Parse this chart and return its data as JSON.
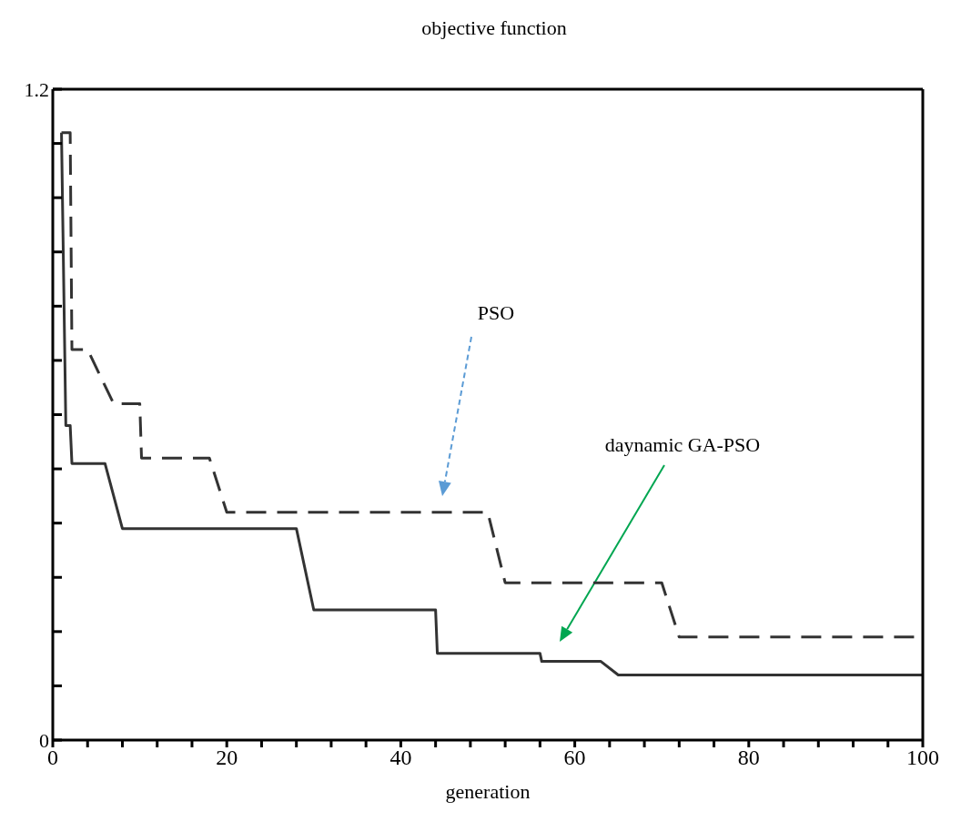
{
  "chart_data": {
    "type": "line",
    "title": "objective function",
    "xlabel": "generation",
    "xlim": [
      0,
      100
    ],
    "ylim": [
      0,
      1.2
    ],
    "xticks": [
      0,
      {
        "value": 4,
        "label": null
      },
      {
        "value": 8,
        "label": null
      },
      {
        "value": 12,
        "label": null
      },
      {
        "value": 16,
        "label": null
      },
      20,
      {
        "value": 24,
        "label": null
      },
      {
        "value": 28,
        "label": null
      },
      {
        "value": 32,
        "label": null
      },
      {
        "value": 36,
        "label": null
      },
      40,
      {
        "value": 44,
        "label": null
      },
      {
        "value": 48,
        "label": null
      },
      {
        "value": 52,
        "label": null
      },
      {
        "value": 56,
        "label": null
      },
      60,
      {
        "value": 64,
        "label": null
      },
      {
        "value": 68,
        "label": null
      },
      {
        "value": 72,
        "label": null
      },
      {
        "value": 76,
        "label": null
      },
      80,
      {
        "value": 84,
        "label": null
      },
      {
        "value": 88,
        "label": null
      },
      {
        "value": 92,
        "label": null
      },
      {
        "value": 96,
        "label": null
      },
      100
    ],
    "yticks": [
      0,
      {
        "value": 0.1,
        "label": null
      },
      {
        "value": 0.2,
        "label": null
      },
      {
        "value": 0.3,
        "label": null
      },
      {
        "value": 0.4,
        "label": null
      },
      {
        "value": 0.5,
        "label": null
      },
      {
        "value": 0.6,
        "label": null
      },
      {
        "value": 0.7,
        "label": null
      },
      {
        "value": 0.8,
        "label": null
      },
      {
        "value": 0.9,
        "label": null
      },
      {
        "value": 1.0,
        "label": null
      },
      {
        "value": 1.1,
        "label": null
      },
      1.2
    ],
    "marker": "none",
    "series": [
      {
        "color": "#333333",
        "line_style": "solid",
        "x": [
          1,
          1.5,
          2,
          2.2,
          4,
          6,
          8,
          28,
          30,
          44,
          44.2,
          56,
          56.2,
          63,
          65,
          100
        ],
        "values": [
          1.12,
          0.58,
          0.58,
          0.51,
          0.51,
          0.51,
          0.39,
          0.39,
          0.24,
          0.24,
          0.16,
          0.16,
          0.145,
          0.145,
          0.12,
          0.12
        ]
      },
      {
        "color": "#333333",
        "line_style": "dashed",
        "x": [
          1,
          2,
          2.2,
          4,
          7,
          10,
          10.2,
          18,
          20,
          50,
          52,
          70,
          72,
          100
        ],
        "values": [
          1.12,
          1.12,
          0.72,
          0.72,
          0.62,
          0.62,
          0.52,
          0.52,
          0.42,
          0.42,
          0.29,
          0.29,
          0.19,
          0.19
        ]
      }
    ],
    "annotations": [
      "PSO",
      "daynamic GA-PSO"
    ]
  }
}
